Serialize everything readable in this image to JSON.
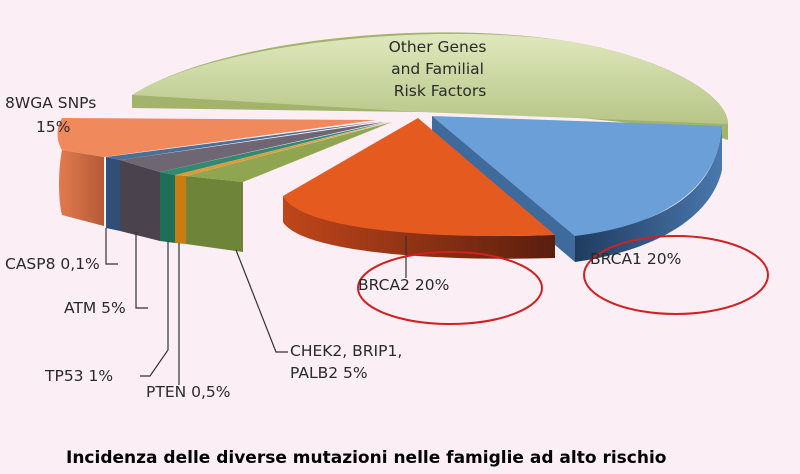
{
  "chart_data": {
    "type": "pie",
    "style": "3d-exploded",
    "title": "Incidenza delle diverse mutazioni nelle famiglie ad alto rischio",
    "slices": [
      {
        "label_lines": [
          "Other Genes",
          "and Familial",
          "Risk Factors"
        ],
        "value": 58.4,
        "color": "#c6d49a"
      },
      {
        "label_lines": [
          "BRCA1 20%"
        ],
        "value": 20,
        "color": "#6a9fd8"
      },
      {
        "label_lines": [
          "BRCA2 20%"
        ],
        "value": 20,
        "color": "#e55a1e"
      },
      {
        "label_lines": [
          "CHEK2, BRIP1,",
          "PALB2 5%"
        ],
        "value": 5,
        "color": "#8fa550"
      },
      {
        "label_lines": [
          "PTEN 0,5%"
        ],
        "value": 0.5,
        "color": "#d38a1e"
      },
      {
        "label_lines": [
          "TP53 1%"
        ],
        "value": 1,
        "color": "#2e8a72"
      },
      {
        "label_lines": [
          "ATM 5%"
        ],
        "value": 5,
        "color": "#6e6672"
      },
      {
        "label_lines": [
          "CASP8 0,1%"
        ],
        "value": 0.1,
        "color": "#4a6f99"
      },
      {
        "label_lines": [
          "8WGA SNPs",
          "15%"
        ],
        "value": 15,
        "color": "#f08a5c"
      }
    ],
    "highlight_circles": [
      "BRCA2 20%",
      "BRCA1 20%"
    ],
    "highlight_color": "#d02020"
  }
}
